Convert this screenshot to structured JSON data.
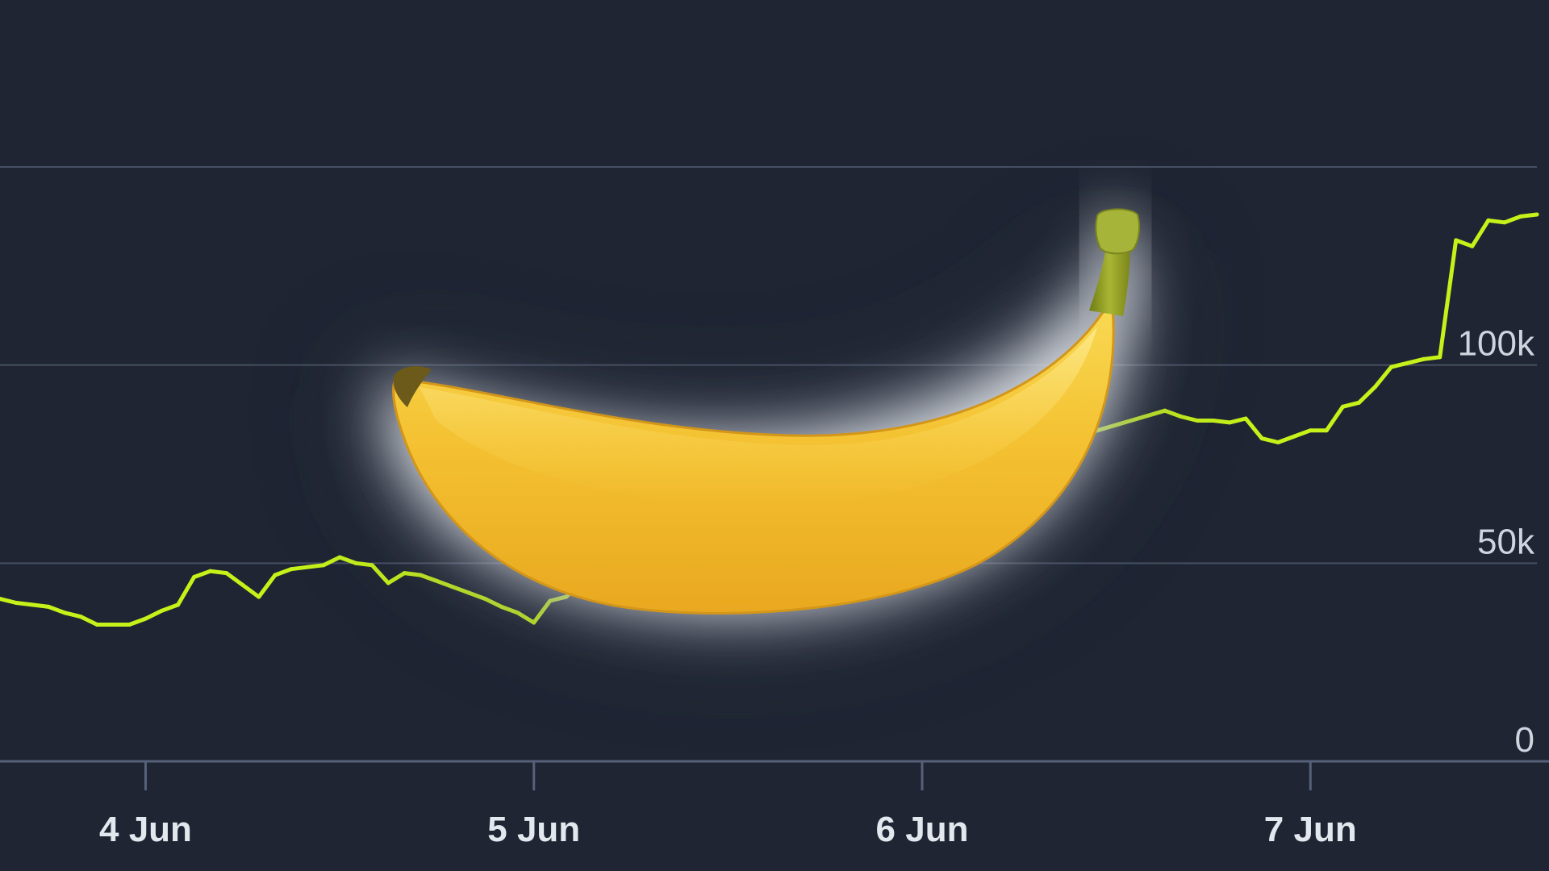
{
  "colors": {
    "background": "#1f2532",
    "grid": "#465063",
    "axis": "#56627a",
    "line": "#c6f21a",
    "banana_main": "#f2bd2c",
    "banana_stem": "#8f9e1f"
  },
  "overlay": {
    "icon": "banana-icon"
  },
  "chart_data": {
    "type": "line",
    "title": "",
    "xlabel": "",
    "ylabel": "",
    "y_axis_side": "right",
    "grid": true,
    "ylim": [
      0,
      150000
    ],
    "y_ticks": [
      0,
      50000,
      100000,
      150000
    ],
    "y_tick_labels": [
      "0",
      "50k",
      "100k",
      ""
    ],
    "xlim": [
      "2024-06-03T15:00",
      "2024-06-07T14:00"
    ],
    "x_ticks": [
      "2024-06-04T00:00",
      "2024-06-05T00:00",
      "2024-06-06T00:00",
      "2024-06-07T00:00"
    ],
    "x_tick_labels": [
      "4 Jun",
      "5 Jun",
      "6 Jun",
      "7 Jun"
    ],
    "series": [
      {
        "x": [
          "2024-06-03T15:00",
          "2024-06-03T16:00",
          "2024-06-03T17:00",
          "2024-06-03T18:00",
          "2024-06-03T19:00",
          "2024-06-03T20:00",
          "2024-06-03T21:00",
          "2024-06-03T22:00",
          "2024-06-03T23:00",
          "2024-06-04T00:00",
          "2024-06-04T01:00",
          "2024-06-04T02:00",
          "2024-06-04T03:00",
          "2024-06-04T04:00",
          "2024-06-04T05:00",
          "2024-06-04T06:00",
          "2024-06-04T07:00",
          "2024-06-04T08:00",
          "2024-06-04T09:00",
          "2024-06-04T10:00",
          "2024-06-04T11:00",
          "2024-06-04T12:00",
          "2024-06-04T13:00",
          "2024-06-04T14:00",
          "2024-06-04T15:00",
          "2024-06-04T16:00",
          "2024-06-04T17:00",
          "2024-06-04T18:00",
          "2024-06-04T19:00",
          "2024-06-04T20:00",
          "2024-06-04T21:00",
          "2024-06-04T22:00",
          "2024-06-04T23:00",
          "2024-06-05T00:00",
          "2024-06-05T01:00",
          "2024-06-05T02:00",
          "2024-06-05T03:00",
          "2024-06-05T04:00",
          "2024-06-06T15:00",
          "2024-06-06T16:00",
          "2024-06-06T17:00",
          "2024-06-06T18:00",
          "2024-06-06T19:00",
          "2024-06-06T20:00",
          "2024-06-06T21:00",
          "2024-06-06T22:00",
          "2024-06-06T23:00",
          "2024-06-07T00:00",
          "2024-06-07T01:00",
          "2024-06-07T02:00",
          "2024-06-07T03:00",
          "2024-06-07T04:00",
          "2024-06-07T05:00",
          "2024-06-07T06:00",
          "2024-06-07T07:00",
          "2024-06-07T08:00",
          "2024-06-07T09:00",
          "2024-06-07T10:00",
          "2024-06-07T11:00",
          "2024-06-07T12:00",
          "2024-06-07T13:00",
          "2024-06-07T14:00"
        ],
        "y": [
          41000,
          40000,
          39500,
          39000,
          37500,
          36500,
          34500,
          34500,
          34500,
          36000,
          38000,
          39500,
          46500,
          48000,
          47500,
          44500,
          41500,
          47000,
          48500,
          49000,
          49500,
          51500,
          50000,
          49500,
          45000,
          47500,
          47000,
          45500,
          44000,
          42500,
          41000,
          39000,
          37500,
          35000,
          40500,
          41500,
          45500,
          46500,
          88500,
          87000,
          86000,
          86000,
          85500,
          86500,
          81500,
          80500,
          82000,
          83500,
          83500,
          89500,
          90500,
          94500,
          99500,
          100500,
          101500,
          102000,
          131500,
          130000,
          136500,
          136000,
          137500,
          138000
        ]
      }
    ]
  }
}
